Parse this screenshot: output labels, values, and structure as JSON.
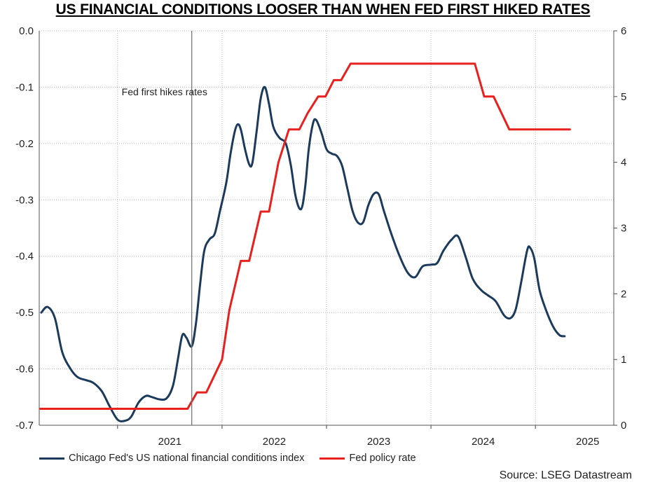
{
  "title": "US FINANCIAL CONDITIONS LOOSER THAN WHEN FED FIRST HIKED RATES",
  "source": "Source: LSEG Datastream",
  "chart_data": {
    "type": "line",
    "title": "US FINANCIAL CONDITIONS LOOSER THAN WHEN FED FIRST HIKED RATES",
    "xlabel": "",
    "ylabel": "",
    "x_ticks": [
      "2021",
      "2022",
      "2023",
      "2024",
      "2025"
    ],
    "xlim": [
      2020.25,
      2025.75
    ],
    "y_left": {
      "lim": [
        -0.7,
        0.0
      ],
      "ticks": [
        "0.0",
        "-0.1",
        "-0.2",
        "-0.3",
        "-0.4",
        "-0.5",
        "-0.6",
        "-0.7"
      ]
    },
    "y_right": {
      "lim": [
        0,
        6
      ],
      "ticks": [
        "6",
        "5",
        "4",
        "3",
        "2",
        "1",
        "0"
      ]
    },
    "grid": true,
    "legend": "bottom-left",
    "annotation": {
      "text": "Fed first hikes rates",
      "x": 2021.71
    },
    "series": [
      {
        "name": "Chicago Fed's US national financial conditions index",
        "axis": "left",
        "color": "#1b3a5c",
        "points": [
          [
            2020.27,
            -0.5
          ],
          [
            2020.33,
            -0.49
          ],
          [
            2020.4,
            -0.51
          ],
          [
            2020.47,
            -0.57
          ],
          [
            2020.55,
            -0.6
          ],
          [
            2020.62,
            -0.615
          ],
          [
            2020.7,
            -0.62
          ],
          [
            2020.77,
            -0.625
          ],
          [
            2020.85,
            -0.64
          ],
          [
            2020.92,
            -0.665
          ],
          [
            2021.0,
            -0.69
          ],
          [
            2021.07,
            -0.692
          ],
          [
            2021.13,
            -0.685
          ],
          [
            2021.2,
            -0.66
          ],
          [
            2021.27,
            -0.648
          ],
          [
            2021.33,
            -0.65
          ],
          [
            2021.4,
            -0.654
          ],
          [
            2021.47,
            -0.652
          ],
          [
            2021.53,
            -0.63
          ],
          [
            2021.58,
            -0.58
          ],
          [
            2021.62,
            -0.54
          ],
          [
            2021.66,
            -0.545
          ],
          [
            2021.71,
            -0.56
          ],
          [
            2021.75,
            -0.52
          ],
          [
            2021.79,
            -0.45
          ],
          [
            2021.83,
            -0.39
          ],
          [
            2021.88,
            -0.37
          ],
          [
            2021.93,
            -0.36
          ],
          [
            2021.98,
            -0.32
          ],
          [
            2022.04,
            -0.27
          ],
          [
            2022.08,
            -0.22
          ],
          [
            2022.12,
            -0.18
          ],
          [
            2022.15,
            -0.166
          ],
          [
            2022.18,
            -0.175
          ],
          [
            2022.22,
            -0.21
          ],
          [
            2022.26,
            -0.237
          ],
          [
            2022.29,
            -0.235
          ],
          [
            2022.33,
            -0.18
          ],
          [
            2022.37,
            -0.12
          ],
          [
            2022.41,
            -0.1
          ],
          [
            2022.45,
            -0.13
          ],
          [
            2022.49,
            -0.17
          ],
          [
            2022.55,
            -0.19
          ],
          [
            2022.61,
            -0.2
          ],
          [
            2022.66,
            -0.24
          ],
          [
            2022.7,
            -0.29
          ],
          [
            2022.74,
            -0.315
          ],
          [
            2022.77,
            -0.31
          ],
          [
            2022.8,
            -0.27
          ],
          [
            2022.83,
            -0.21
          ],
          [
            2022.87,
            -0.165
          ],
          [
            2022.9,
            -0.158
          ],
          [
            2022.95,
            -0.18
          ],
          [
            2023.0,
            -0.21
          ],
          [
            2023.05,
            -0.218
          ],
          [
            2023.1,
            -0.222
          ],
          [
            2023.15,
            -0.24
          ],
          [
            2023.2,
            -0.28
          ],
          [
            2023.25,
            -0.32
          ],
          [
            2023.3,
            -0.34
          ],
          [
            2023.35,
            -0.34
          ],
          [
            2023.4,
            -0.31
          ],
          [
            2023.45,
            -0.29
          ],
          [
            2023.5,
            -0.29
          ],
          [
            2023.55,
            -0.32
          ],
          [
            2023.62,
            -0.36
          ],
          [
            2023.7,
            -0.4
          ],
          [
            2023.78,
            -0.43
          ],
          [
            2023.85,
            -0.437
          ],
          [
            2023.92,
            -0.418
          ],
          [
            2024.0,
            -0.415
          ],
          [
            2024.06,
            -0.412
          ],
          [
            2024.12,
            -0.39
          ],
          [
            2024.2,
            -0.37
          ],
          [
            2024.26,
            -0.365
          ],
          [
            2024.33,
            -0.4
          ],
          [
            2024.4,
            -0.44
          ],
          [
            2024.48,
            -0.46
          ],
          [
            2024.55,
            -0.47
          ],
          [
            2024.62,
            -0.48
          ],
          [
            2024.7,
            -0.505
          ],
          [
            2024.76,
            -0.51
          ],
          [
            2024.81,
            -0.495
          ],
          [
            2024.86,
            -0.45
          ],
          [
            2024.92,
            -0.39
          ],
          [
            2024.95,
            -0.385
          ],
          [
            2024.99,
            -0.405
          ],
          [
            2025.04,
            -0.46
          ],
          [
            2025.1,
            -0.495
          ],
          [
            2025.17,
            -0.525
          ],
          [
            2025.23,
            -0.54
          ],
          [
            2025.28,
            -0.542
          ]
        ]
      },
      {
        "name": "Fed policy rate",
        "axis": "right",
        "color": "#e8201e",
        "points": [
          [
            2020.26,
            0.25
          ],
          [
            2021.67,
            0.25
          ],
          [
            2021.76,
            0.5
          ],
          [
            2021.85,
            0.5
          ],
          [
            2022.0,
            1.0
          ],
          [
            2022.07,
            1.75
          ],
          [
            2022.18,
            2.5
          ],
          [
            2022.26,
            2.5
          ],
          [
            2022.37,
            3.25
          ],
          [
            2022.45,
            3.25
          ],
          [
            2022.54,
            4.0
          ],
          [
            2022.64,
            4.5
          ],
          [
            2022.74,
            4.5
          ],
          [
            2022.82,
            4.75
          ],
          [
            2022.92,
            5.0
          ],
          [
            2022.99,
            5.0
          ],
          [
            2023.07,
            5.25
          ],
          [
            2023.14,
            5.25
          ],
          [
            2023.23,
            5.5
          ],
          [
            2024.42,
            5.5
          ],
          [
            2024.51,
            5.0
          ],
          [
            2024.6,
            5.0
          ],
          [
            2024.75,
            4.5
          ],
          [
            2025.33,
            4.5
          ]
        ]
      }
    ]
  }
}
